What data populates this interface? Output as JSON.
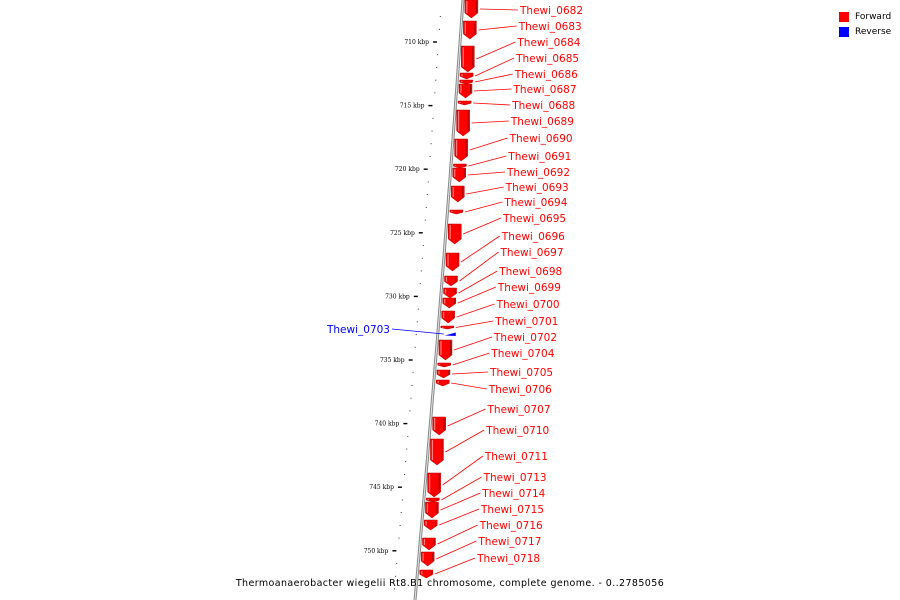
{
  "legend": {
    "forward": {
      "label": "Forward",
      "color": "#ff0000"
    },
    "reverse": {
      "label": "Reverse",
      "color": "#0000ff"
    }
  },
  "caption": "Thermoanaerobacter wiegelii Rt8.B1 chromosome, complete genome. - 0..2785056",
  "ticks": [
    "710 kbp",
    "715 kbp",
    "720 kbp",
    "725 kbp",
    "730 kbp",
    "735 kbp",
    "740 kbp",
    "745 kbp",
    "750 kbp"
  ],
  "genes": [
    {
      "name": "Thewi_0682",
      "strand": "forward"
    },
    {
      "name": "Thewi_0683",
      "strand": "forward"
    },
    {
      "name": "Thewi_0684",
      "strand": "forward"
    },
    {
      "name": "Thewi_0685",
      "strand": "forward"
    },
    {
      "name": "Thewi_0686",
      "strand": "forward"
    },
    {
      "name": "Thewi_0687",
      "strand": "forward"
    },
    {
      "name": "Thewi_0688",
      "strand": "forward"
    },
    {
      "name": "Thewi_0689",
      "strand": "forward"
    },
    {
      "name": "Thewi_0690",
      "strand": "forward"
    },
    {
      "name": "Thewi_0691",
      "strand": "forward"
    },
    {
      "name": "Thewi_0692",
      "strand": "forward"
    },
    {
      "name": "Thewi_0693",
      "strand": "forward"
    },
    {
      "name": "Thewi_0694",
      "strand": "forward"
    },
    {
      "name": "Thewi_0695",
      "strand": "forward"
    },
    {
      "name": "Thewi_0696",
      "strand": "forward"
    },
    {
      "name": "Thewi_0697",
      "strand": "forward"
    },
    {
      "name": "Thewi_0698",
      "strand": "forward"
    },
    {
      "name": "Thewi_0699",
      "strand": "forward"
    },
    {
      "name": "Thewi_0700",
      "strand": "forward"
    },
    {
      "name": "Thewi_0701",
      "strand": "forward"
    },
    {
      "name": "Thewi_0702",
      "strand": "forward"
    },
    {
      "name": "Thewi_0703",
      "strand": "reverse"
    },
    {
      "name": "Thewi_0704",
      "strand": "forward"
    },
    {
      "name": "Thewi_0705",
      "strand": "forward"
    },
    {
      "name": "Thewi_0706",
      "strand": "forward"
    },
    {
      "name": "Thewi_0707",
      "strand": "forward"
    },
    {
      "name": "Thewi_0710",
      "strand": "forward"
    },
    {
      "name": "Thewi_0711",
      "strand": "forward"
    },
    {
      "name": "Thewi_0713",
      "strand": "forward"
    },
    {
      "name": "Thewi_0714",
      "strand": "forward"
    },
    {
      "name": "Thewi_0715",
      "strand": "forward"
    },
    {
      "name": "Thewi_0716",
      "strand": "forward"
    },
    {
      "name": "Thewi_0717",
      "strand": "forward"
    },
    {
      "name": "Thewi_0718",
      "strand": "forward"
    }
  ]
}
